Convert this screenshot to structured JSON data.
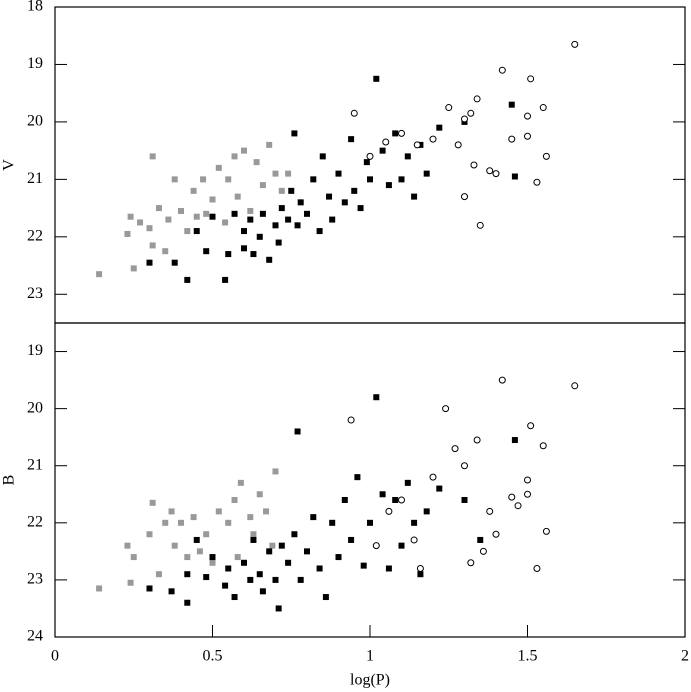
{
  "chart_data": [
    {
      "type": "scatter",
      "ylabel": "V",
      "xlim": [
        0,
        2
      ],
      "ylim": [
        18,
        23.5
      ],
      "y_inverted": true,
      "yticks": [
        18,
        19,
        20,
        21,
        22,
        23
      ],
      "series": [
        {
          "color": "#999999",
          "marker": "filled",
          "x": [
            0.14,
            0.23,
            0.24,
            0.25,
            0.27,
            0.3,
            0.31,
            0.31,
            0.33,
            0.35,
            0.36,
            0.38,
            0.4,
            0.42,
            0.44,
            0.45,
            0.47,
            0.48,
            0.5,
            0.52,
            0.54,
            0.55,
            0.57,
            0.58,
            0.6,
            0.62,
            0.64,
            0.66,
            0.68,
            0.7,
            0.72,
            0.74
          ],
          "values": [
            22.65,
            21.95,
            21.65,
            22.55,
            21.75,
            21.85,
            20.6,
            22.15,
            21.5,
            22.25,
            21.7,
            21.0,
            21.55,
            21.9,
            21.2,
            21.65,
            21.0,
            21.6,
            21.35,
            20.8,
            21.75,
            21.0,
            20.6,
            21.3,
            20.5,
            21.55,
            20.7,
            21.1,
            20.4,
            20.9,
            21.2,
            20.9
          ]
        },
        {
          "color": "#000000",
          "marker": "filled",
          "x": [
            0.3,
            0.38,
            0.42,
            0.45,
            0.48,
            0.5,
            0.54,
            0.55,
            0.57,
            0.6,
            0.6,
            0.62,
            0.63,
            0.65,
            0.66,
            0.68,
            0.7,
            0.71,
            0.72,
            0.74,
            0.75,
            0.76,
            0.77,
            0.78,
            0.8,
            0.82,
            0.84,
            0.85,
            0.87,
            0.88,
            0.9,
            0.92,
            0.94,
            0.95,
            0.97,
            0.99,
            1.0,
            1.02,
            1.04,
            1.06,
            1.08,
            1.1,
            1.12,
            1.14,
            1.16,
            1.18,
            1.22,
            1.3,
            1.45,
            1.46
          ],
          "values": [
            22.45,
            22.45,
            22.75,
            21.9,
            22.25,
            21.65,
            22.75,
            22.3,
            21.6,
            21.9,
            22.2,
            21.7,
            22.3,
            22.0,
            21.6,
            22.4,
            21.8,
            22.1,
            21.5,
            21.7,
            21.2,
            20.2,
            21.8,
            21.4,
            21.6,
            21.0,
            21.9,
            20.6,
            21.3,
            21.7,
            20.9,
            21.4,
            20.3,
            21.2,
            21.5,
            20.7,
            21.0,
            19.25,
            20.5,
            21.1,
            20.2,
            21.0,
            20.6,
            21.3,
            20.4,
            20.9,
            20.1,
            20.0,
            19.7,
            20.95
          ]
        },
        {
          "color": "#000000",
          "marker": "open",
          "x": [
            0.95,
            1.0,
            1.05,
            1.1,
            1.15,
            1.2,
            1.25,
            1.28,
            1.3,
            1.32,
            1.33,
            1.34,
            1.35,
            1.38,
            1.4,
            1.42,
            1.45,
            1.5,
            1.5,
            1.51,
            1.53,
            1.55,
            1.56,
            1.65,
            1.3
          ],
          "values": [
            19.85,
            20.6,
            20.35,
            20.2,
            20.4,
            20.3,
            19.75,
            20.4,
            19.95,
            19.85,
            20.75,
            19.6,
            21.8,
            20.85,
            20.9,
            19.1,
            20.3,
            19.9,
            20.25,
            19.25,
            21.05,
            19.75,
            20.6,
            18.65,
            21.3
          ]
        }
      ]
    },
    {
      "type": "scatter",
      "ylabel": "B",
      "xlabel": "log(P)",
      "xlim": [
        0,
        2
      ],
      "xticks": [
        0,
        0.5,
        1,
        1.5,
        2
      ],
      "ylim": [
        18.5,
        24
      ],
      "y_inverted": true,
      "yticks": [
        19,
        20,
        21,
        22,
        23,
        24
      ],
      "series": [
        {
          "color": "#999999",
          "marker": "filled",
          "x": [
            0.14,
            0.23,
            0.24,
            0.25,
            0.3,
            0.31,
            0.33,
            0.35,
            0.37,
            0.38,
            0.4,
            0.42,
            0.44,
            0.46,
            0.48,
            0.5,
            0.52,
            0.55,
            0.57,
            0.58,
            0.59,
            0.62,
            0.63,
            0.65,
            0.67,
            0.69,
            0.7
          ],
          "values": [
            23.15,
            22.4,
            23.05,
            22.6,
            22.2,
            21.65,
            22.9,
            22.0,
            21.8,
            22.4,
            22.0,
            22.6,
            21.9,
            22.5,
            22.2,
            22.7,
            21.8,
            22.0,
            21.6,
            22.6,
            21.3,
            21.9,
            22.2,
            21.5,
            21.8,
            22.4,
            21.1
          ]
        },
        {
          "color": "#000000",
          "marker": "filled",
          "x": [
            0.3,
            0.37,
            0.42,
            0.42,
            0.45,
            0.48,
            0.5,
            0.54,
            0.55,
            0.57,
            0.6,
            0.62,
            0.63,
            0.65,
            0.66,
            0.68,
            0.7,
            0.71,
            0.72,
            0.74,
            0.76,
            0.77,
            0.78,
            0.8,
            0.82,
            0.84,
            0.86,
            0.88,
            0.9,
            0.92,
            0.94,
            0.96,
            0.98,
            1.0,
            1.02,
            1.04,
            1.06,
            1.08,
            1.1,
            1.12,
            1.14,
            1.16,
            1.18,
            1.22,
            1.46,
            1.3,
            1.35
          ],
          "values": [
            23.15,
            23.2,
            23.4,
            22.9,
            22.3,
            22.95,
            22.6,
            23.1,
            22.8,
            23.3,
            22.7,
            23.0,
            22.3,
            22.9,
            23.2,
            22.5,
            23.0,
            23.5,
            22.4,
            22.7,
            22.2,
            20.4,
            23.0,
            22.5,
            21.9,
            22.8,
            23.3,
            22.0,
            22.6,
            21.6,
            22.3,
            21.2,
            22.75,
            22.0,
            19.8,
            21.5,
            22.8,
            21.6,
            22.4,
            21.3,
            22.0,
            22.9,
            21.8,
            21.4,
            20.55,
            21.6,
            22.3
          ]
        },
        {
          "color": "#000000",
          "marker": "open",
          "x": [
            0.94,
            1.02,
            1.06,
            1.1,
            1.14,
            1.16,
            1.2,
            1.24,
            1.27,
            1.3,
            1.32,
            1.34,
            1.36,
            1.38,
            1.4,
            1.42,
            1.45,
            1.47,
            1.5,
            1.5,
            1.51,
            1.53,
            1.55,
            1.56,
            1.65
          ],
          "values": [
            20.2,
            22.4,
            21.8,
            21.6,
            22.3,
            22.8,
            21.2,
            20.0,
            20.7,
            21.0,
            22.7,
            20.55,
            22.5,
            21.8,
            22.2,
            19.5,
            21.55,
            21.7,
            21.25,
            21.5,
            20.3,
            22.8,
            20.65,
            22.15,
            19.6
          ]
        }
      ]
    }
  ]
}
